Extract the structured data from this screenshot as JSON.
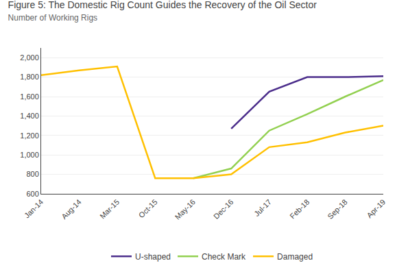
{
  "chart_data": {
    "type": "line",
    "title": "Figure 5: The Domestic Rig Count Guides the Recovery of the Oil Sector",
    "subtitle": "Number of Working Rigs",
    "categories": [
      "Jan-14",
      "Aug-14",
      "Mar-15",
      "Oct-15",
      "May-16",
      "Dec-16",
      "Jul-17",
      "Feb-18",
      "Sep-18",
      "Apr-19"
    ],
    "series": [
      {
        "name": "U-shaped",
        "color": "#4b2d8b",
        "values": [
          null,
          null,
          null,
          null,
          null,
          1270,
          1650,
          1800,
          1800,
          1810
        ]
      },
      {
        "name": "Check Mark",
        "color": "#92d050",
        "values": [
          null,
          null,
          null,
          null,
          760,
          860,
          1250,
          1420,
          1600,
          1770
        ]
      },
      {
        "name": "Damaged",
        "color": "#ffc000",
        "values": [
          1820,
          1870,
          1910,
          760,
          760,
          800,
          1080,
          1130,
          1230,
          1300
        ]
      }
    ],
    "ylim": [
      600,
      2100
    ],
    "yticks": [
      600,
      800,
      {
        "value": 1000,
        "label": "1,000"
      },
      {
        "value": 1200,
        "label": "1,200"
      },
      {
        "value": 1400,
        "label": "1,400"
      },
      {
        "value": 1600,
        "label": "1,600"
      },
      {
        "value": 1800,
        "label": "1,800"
      },
      {
        "value": 2000,
        "label": "2,000"
      }
    ],
    "grid": true,
    "legend": "bottom"
  }
}
